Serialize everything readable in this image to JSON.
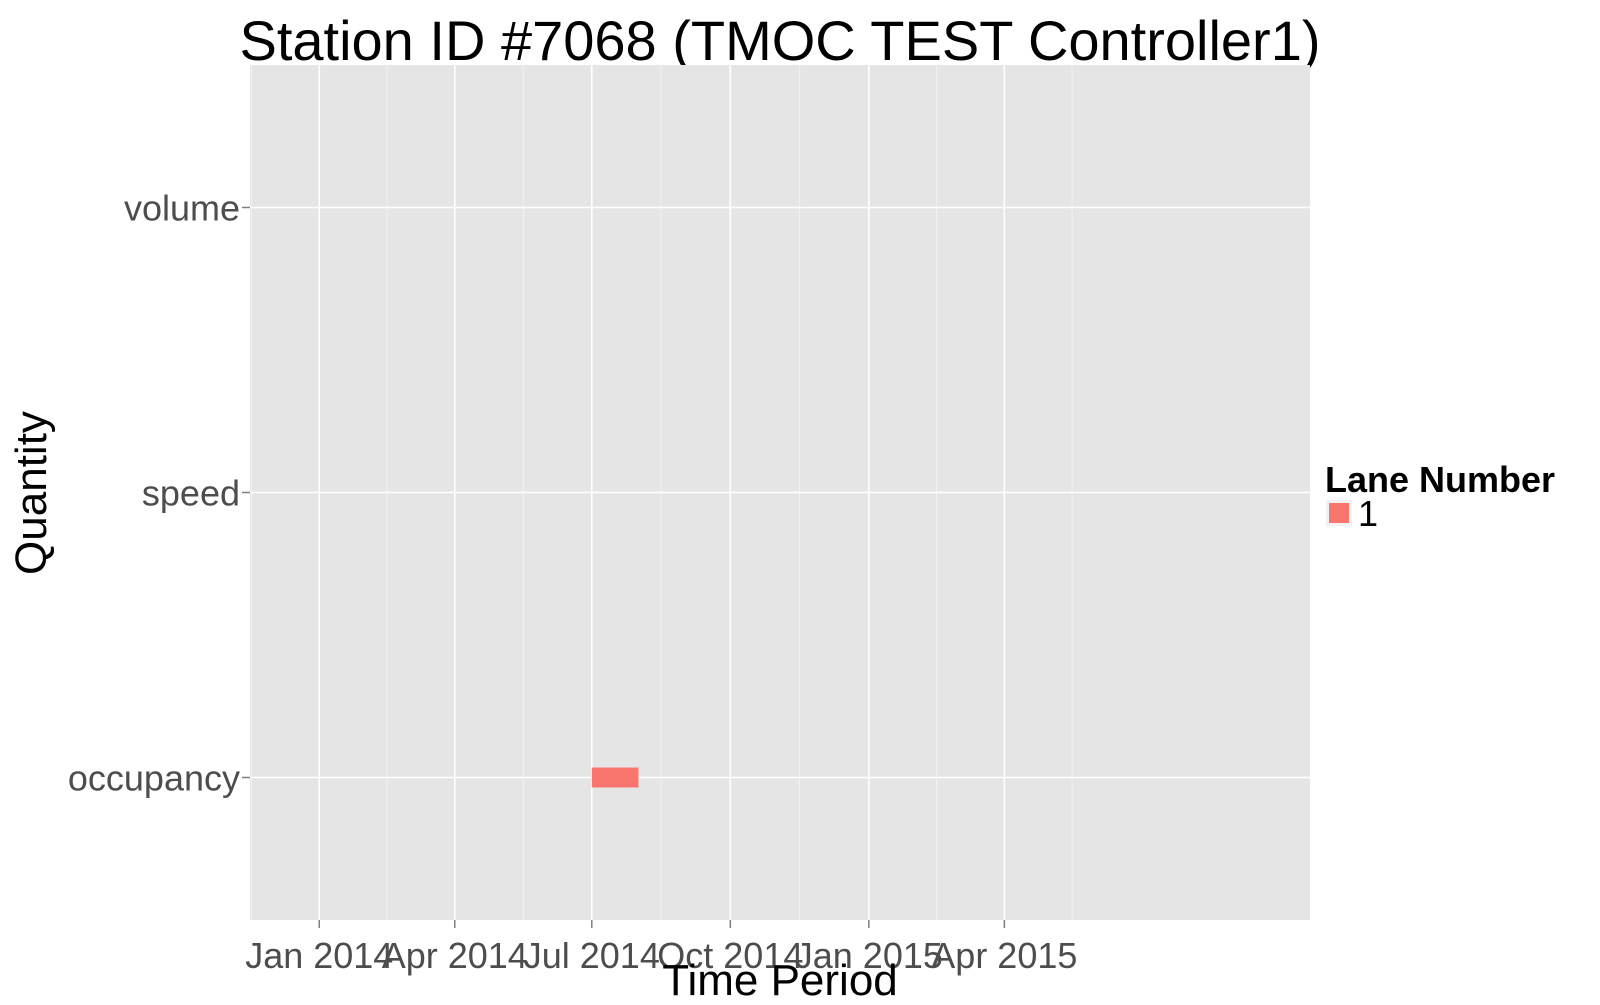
{
  "chart_data": {
    "type": "gantt",
    "title": "Station ID #7068 (TMOC TEST Controller1)",
    "xlabel": "Time Period",
    "ylabel": "Quantity",
    "x_scale": "date",
    "xlim": [
      "2013-11-16",
      "2015-10-21"
    ],
    "x_ticks": [
      {
        "date": "2014-01-01",
        "label": "Jan 2014"
      },
      {
        "date": "2014-04-01",
        "label": "Apr 2014"
      },
      {
        "date": "2014-07-01",
        "label": "Jul 2014"
      },
      {
        "date": "2014-10-01",
        "label": "Oct 2014"
      },
      {
        "date": "2015-01-01",
        "label": "Jan 2015"
      },
      {
        "date": "2015-04-01",
        "label": "Apr 2015"
      }
    ],
    "categories": [
      "volume",
      "speed",
      "occupancy"
    ],
    "series": [
      {
        "name": "1",
        "color": "#F8766D",
        "segments": [
          {
            "category": "occupancy",
            "start": "2014-07-01",
            "end": "2014-08-01"
          }
        ]
      }
    ],
    "legend": {
      "title": "Lane Number",
      "placement": "right"
    },
    "grid": true,
    "panel_background": "#E5E5E5",
    "grid_color": "#FFFFFF"
  }
}
